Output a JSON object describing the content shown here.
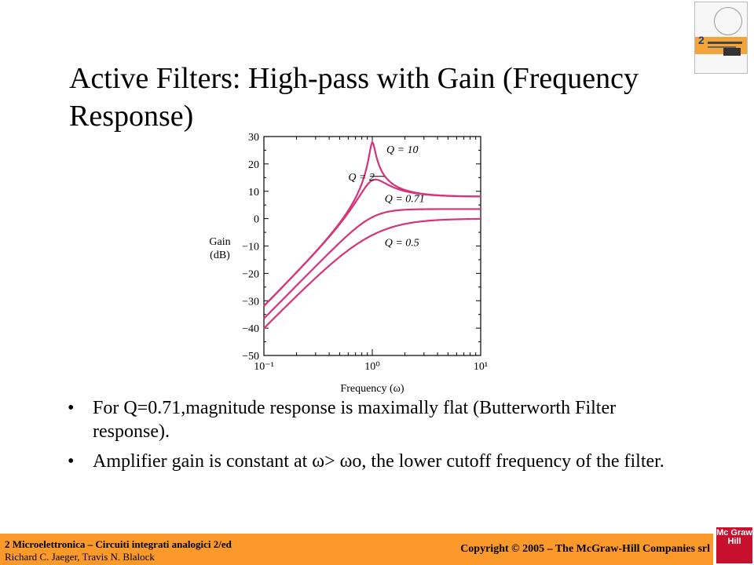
{
  "slide": {
    "title": "Active Filters: High-pass with Gain (Frequency Response)",
    "bullets": [
      "For Q=0.71,magnitude response is maximally flat (Butterworth Filter response).",
      "Amplifier gain is constant at ω> ωo, the lower cutoff frequency of the filter."
    ]
  },
  "footer": {
    "line1": "2 Microelettronica – Circuiti integrati analogici 2/ed",
    "line2": "Richard C. Jaeger, Travis N. Blalock",
    "copyright": "Copyright © 2005 – The McGraw-Hill Companies srl",
    "logo_text": "Mc Graw Hill"
  },
  "colors": {
    "curve": "#d6337a",
    "footer_bg": "#fb9a2a"
  },
  "chart_data": {
    "type": "line",
    "xlabel": "Frequency (ω)",
    "ylabel": "Gain\n(dB)",
    "x_scale": "log",
    "xlim": [
      0.1,
      10
    ],
    "ylim": [
      -50,
      30
    ],
    "x_ticks": [
      0.1,
      1,
      10
    ],
    "x_tick_labels": [
      "10⁻¹",
      "10⁰",
      "10¹"
    ],
    "y_ticks": [
      30,
      20,
      10,
      0,
      -10,
      -20,
      -30,
      -40,
      -50
    ],
    "y_tick_labels": [
      "30",
      "20",
      "10",
      "0",
      "−10",
      "−20",
      "−30",
      "−40",
      "−50"
    ],
    "grid": false,
    "series": [
      {
        "name": "Q = 10",
        "Q": 10,
        "passband_gain_db": 8.0
      },
      {
        "name": "Q = 2",
        "Q": 2,
        "passband_gain_db": 8.0
      },
      {
        "name": "Q = 0.71",
        "Q": 0.71,
        "passband_gain_db": 3.5
      },
      {
        "name": "Q = 0.5",
        "Q": 0.5,
        "passband_gain_db": 0
      }
    ],
    "annotations": [
      {
        "text": "Q = 10",
        "x": 1.35,
        "y": 24
      },
      {
        "text": "Q = 2",
        "x": 0.6,
        "y": 14
      },
      {
        "text": "Q = 0.71",
        "x": 1.3,
        "y": 6
      },
      {
        "text": "Q = 0.5",
        "x": 1.3,
        "y": -10
      }
    ]
  }
}
